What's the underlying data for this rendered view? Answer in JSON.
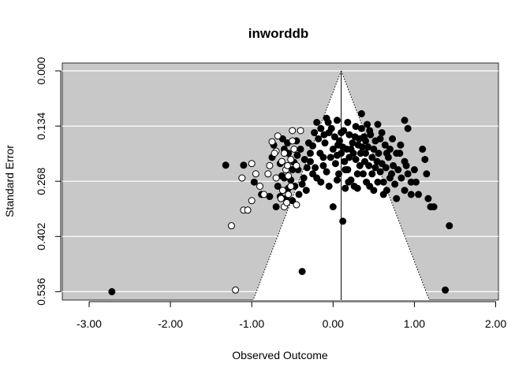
{
  "chart_data": {
    "type": "scatter",
    "title": "inworddb",
    "xlabel": "Observed Outcome",
    "ylabel": "Standard Error",
    "xlim": [
      -3.3,
      2.03
    ],
    "ylim": [
      0.0,
      0.5525
    ],
    "y_reversed": true,
    "x_ticks": [
      -3.0,
      -2.0,
      -1.0,
      0.0,
      1.0,
      2.0
    ],
    "x_tick_labels": [
      "-3.00",
      "-2.00",
      "-1.00",
      "0.00",
      "1.00",
      "2.00"
    ],
    "y_ticks": [
      0.0,
      0.134,
      0.268,
      0.402,
      0.536
    ],
    "y_tick_labels": [
      "0.000",
      "0.134",
      "0.268",
      "0.402",
      "0.536"
    ],
    "grid": true,
    "panel_color": "#c8c8c8",
    "funnel_color": "#ffffff",
    "funnel_center": 0.1,
    "funnel_multiplier": 1.96,
    "series": [
      {
        "marker": "filled",
        "color": "#000000",
        "points": [
          [
            -2.72,
            0.536
          ],
          [
            1.38,
            0.532
          ],
          [
            1.43,
            0.376
          ],
          [
            -0.38,
            0.487
          ],
          [
            0.12,
            0.365
          ],
          [
            -1.32,
            0.229
          ],
          [
            -1.1,
            0.229
          ],
          [
            -0.97,
            0.27
          ],
          [
            -0.88,
            0.3
          ],
          [
            -0.78,
            0.305
          ],
          [
            -0.7,
            0.33
          ],
          [
            -0.73,
            0.18
          ],
          [
            -0.75,
            0.21
          ],
          [
            -0.6,
            0.19
          ],
          [
            -0.63,
            0.255
          ],
          [
            -0.55,
            0.285
          ],
          [
            -0.5,
            0.315
          ],
          [
            -0.48,
            0.222
          ],
          [
            -0.43,
            0.24
          ],
          [
            -0.38,
            0.275
          ],
          [
            -0.33,
            0.29
          ],
          [
            -0.28,
            0.22
          ],
          [
            -0.25,
            0.182
          ],
          [
            -0.2,
            0.26
          ],
          [
            -0.16,
            0.2
          ],
          [
            -0.11,
            0.155
          ],
          [
            -0.06,
            0.125
          ],
          [
            -0.02,
            0.14
          ],
          [
            0.02,
            0.16
          ],
          [
            0.06,
            0.18
          ],
          [
            0.1,
            0.2
          ],
          [
            0.14,
            0.22
          ],
          [
            0.18,
            0.24
          ],
          [
            0.22,
            0.265
          ],
          [
            0.26,
            0.28
          ],
          [
            0.3,
            0.25
          ],
          [
            0.34,
            0.2
          ],
          [
            0.38,
            0.16
          ],
          [
            0.42,
            0.13
          ],
          [
            0.46,
            0.155
          ],
          [
            0.5,
            0.19
          ],
          [
            0.54,
            0.22
          ],
          [
            0.58,
            0.245
          ],
          [
            0.62,
            0.27
          ],
          [
            0.66,
            0.29
          ],
          [
            0.7,
            0.26
          ],
          [
            0.74,
            0.23
          ],
          [
            0.78,
            0.2
          ],
          [
            0.83,
            0.18
          ],
          [
            0.88,
            0.22
          ],
          [
            0.92,
            0.25
          ],
          [
            0.96,
            0.27
          ],
          [
            1.0,
            0.24
          ],
          [
            1.05,
            0.3
          ],
          [
            1.1,
            0.19
          ],
          [
            1.13,
            0.215
          ],
          [
            1.17,
            0.31
          ],
          [
            1.2,
            0.33
          ],
          [
            1.24,
            0.33
          ],
          [
            1.15,
            0.25
          ],
          [
            0.92,
            0.14
          ],
          [
            0.88,
            0.12
          ],
          [
            0.6,
            0.15
          ],
          [
            0.55,
            0.13
          ],
          [
            0.35,
            0.104
          ],
          [
            -0.08,
            0.115
          ],
          [
            -0.3,
            0.175
          ],
          [
            -0.25,
            0.25
          ],
          [
            -0.42,
            0.3
          ],
          [
            0.0,
            0.33
          ],
          [
            -0.6,
            0.26
          ],
          [
            -0.65,
            0.305
          ],
          [
            -0.52,
            0.265
          ],
          [
            -0.18,
            0.165
          ],
          [
            -0.12,
            0.21
          ],
          [
            -0.08,
            0.245
          ],
          [
            0.03,
            0.225
          ],
          [
            0.08,
            0.17
          ],
          [
            0.13,
            0.145
          ],
          [
            0.17,
            0.19
          ],
          [
            0.2,
            0.155
          ],
          [
            0.24,
            0.175
          ],
          [
            0.28,
            0.135
          ],
          [
            0.32,
            0.165
          ],
          [
            0.36,
            0.185
          ],
          [
            0.4,
            0.2
          ],
          [
            0.44,
            0.23
          ],
          [
            0.48,
            0.25
          ],
          [
            0.52,
            0.17
          ],
          [
            0.56,
            0.2
          ],
          [
            0.6,
            0.225
          ],
          [
            0.64,
            0.18
          ],
          [
            0.68,
            0.21
          ],
          [
            0.72,
            0.25
          ],
          [
            0.76,
            0.275
          ],
          [
            0.8,
            0.24
          ],
          [
            0.84,
            0.26
          ],
          [
            0.88,
            0.29
          ],
          [
            0.96,
            0.3
          ],
          [
            0.78,
            0.31
          ],
          [
            0.62,
            0.3
          ],
          [
            0.45,
            0.28
          ],
          [
            0.3,
            0.285
          ],
          [
            0.15,
            0.285
          ],
          [
            0.05,
            0.265
          ],
          [
            -0.05,
            0.28
          ],
          [
            -0.15,
            0.27
          ],
          [
            -0.22,
            0.235
          ],
          [
            -0.28,
            0.2
          ],
          [
            -0.35,
            0.215
          ],
          [
            -0.4,
            0.19
          ],
          [
            -0.45,
            0.17
          ],
          [
            -0.5,
            0.24
          ],
          [
            -0.55,
            0.2
          ],
          [
            -0.65,
            0.225
          ],
          [
            -0.68,
            0.28
          ],
          [
            -0.58,
            0.31
          ],
          [
            -0.47,
            0.28
          ],
          [
            -0.36,
            0.26
          ],
          [
            0.1,
            0.15
          ],
          [
            0.0,
            0.19
          ],
          [
            -0.03,
            0.21
          ],
          [
            0.07,
            0.25
          ],
          [
            0.19,
            0.27
          ],
          [
            0.33,
            0.23
          ],
          [
            0.37,
            0.25
          ],
          [
            0.41,
            0.27
          ],
          [
            0.5,
            0.29
          ],
          [
            0.55,
            0.27
          ],
          [
            0.65,
            0.235
          ],
          [
            0.7,
            0.19
          ],
          [
            0.73,
            0.165
          ],
          [
            0.45,
            0.145
          ],
          [
            0.4,
            0.17
          ],
          [
            0.25,
            0.2
          ],
          [
            0.2,
            0.21
          ],
          [
            0.12,
            0.185
          ],
          [
            -0.1,
            0.175
          ],
          [
            -0.15,
            0.14
          ],
          [
            -0.2,
            0.125
          ],
          [
            -0.23,
            0.15
          ],
          [
            0.05,
            0.12
          ],
          [
            0.27,
            0.16
          ],
          [
            0.31,
            0.18
          ],
          [
            0.35,
            0.14
          ],
          [
            0.39,
            0.22
          ],
          [
            0.15,
            0.24
          ],
          [
            -0.12,
            0.23
          ],
          [
            -0.32,
            0.235
          ],
          [
            0.58,
            0.165
          ],
          [
            0.66,
            0.2
          ],
          [
            0.82,
            0.2
          ],
          [
            0.9,
            0.23
          ],
          [
            1.02,
            0.27
          ],
          [
            -0.62,
            0.165
          ],
          [
            -0.56,
            0.175
          ],
          [
            -0.44,
            0.205
          ],
          [
            -0.05,
            0.15
          ],
          [
            0.18,
            0.125
          ],
          [
            0.22,
            0.19
          ],
          [
            0.48,
            0.21
          ],
          [
            0.52,
            0.235
          ],
          [
            0.43,
            0.185
          ],
          [
            0.28,
            0.215
          ],
          [
            0.05,
            0.205
          ]
        ]
      },
      {
        "marker": "open",
        "color": "#ffffff",
        "points": [
          [
            -1.2,
            0.532
          ],
          [
            -1.25,
            0.376
          ],
          [
            -1.1,
            0.338
          ],
          [
            -1.05,
            0.338
          ],
          [
            -1.0,
            0.315
          ],
          [
            -0.9,
            0.28
          ],
          [
            -0.8,
            0.25
          ],
          [
            -0.7,
            0.195
          ],
          [
            -0.75,
            0.172
          ],
          [
            -0.68,
            0.158
          ],
          [
            -0.6,
            0.2
          ],
          [
            -0.58,
            0.24
          ],
          [
            -0.63,
            0.22
          ],
          [
            -0.52,
            0.215
          ],
          [
            -0.5,
            0.145
          ],
          [
            -0.48,
            0.19
          ],
          [
            -0.45,
            0.325
          ],
          [
            -0.55,
            0.3
          ],
          [
            -0.62,
            0.29
          ],
          [
            -0.6,
            0.33
          ],
          [
            -0.7,
            0.26
          ],
          [
            -0.85,
            0.3
          ],
          [
            -0.95,
            0.25
          ],
          [
            -1.12,
            0.26
          ],
          [
            -1.0,
            0.225
          ],
          [
            -0.78,
            0.23
          ],
          [
            -0.56,
            0.23
          ],
          [
            -0.5,
            0.17
          ],
          [
            -0.45,
            0.23
          ],
          [
            -0.52,
            0.28
          ],
          [
            -0.57,
            0.32
          ],
          [
            -0.64,
            0.31
          ],
          [
            -0.4,
            0.145
          ],
          [
            -0.55,
            0.255
          ],
          [
            -0.72,
            0.2
          ]
        ]
      }
    ]
  }
}
